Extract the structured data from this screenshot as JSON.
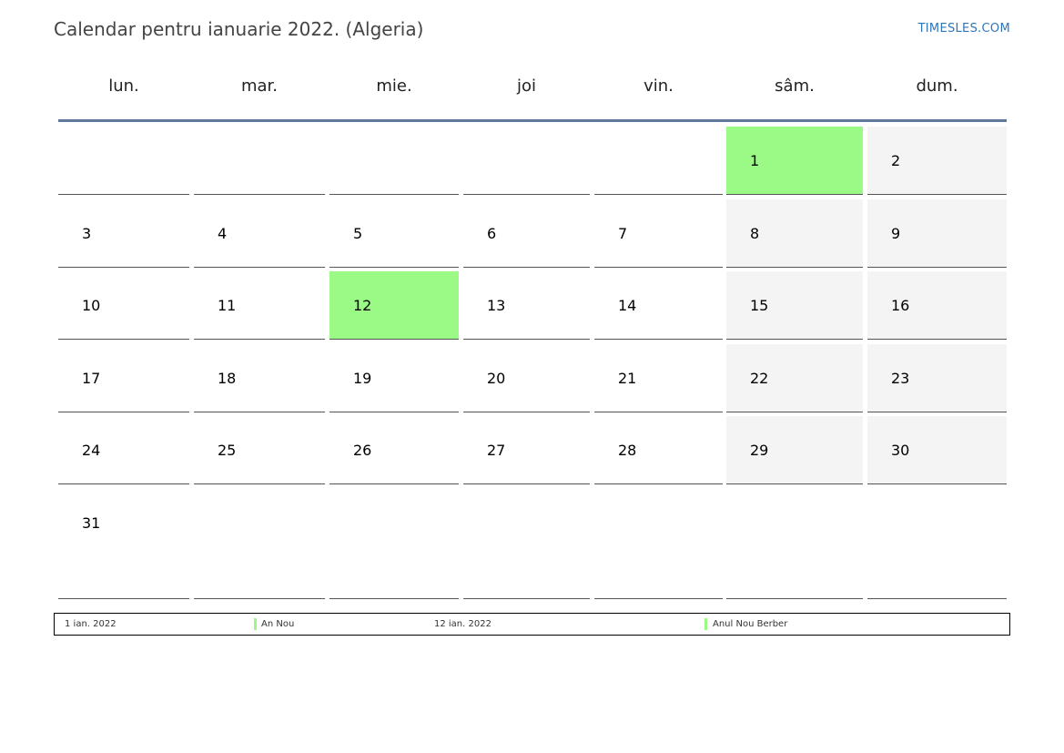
{
  "header": {
    "title": "Calendar pentru ianuarie 2022. (Algeria)",
    "site": "TIMESLES.COM"
  },
  "colors": {
    "holiday": "#9afa85",
    "weekend": "#f4f4f4",
    "header_rule": "#5d7a9a",
    "link": "#2e75b6"
  },
  "weekdays": [
    "lun.",
    "mar.",
    "mie.",
    "joi",
    "vin.",
    "sâm.",
    "dum."
  ],
  "weeks": [
    [
      "",
      "",
      "",
      "",
      "",
      "1",
      "2"
    ],
    [
      "3",
      "4",
      "5",
      "6",
      "7",
      "8",
      "9"
    ],
    [
      "10",
      "11",
      "12",
      "13",
      "14",
      "15",
      "16"
    ],
    [
      "17",
      "18",
      "19",
      "20",
      "21",
      "22",
      "23"
    ],
    [
      "24",
      "25",
      "26",
      "27",
      "28",
      "29",
      "30"
    ],
    [
      "31",
      "",
      "",
      "",
      "",
      "",
      ""
    ]
  ],
  "holidays": [
    "1",
    "12"
  ],
  "legend": [
    {
      "date": "1 ian. 2022",
      "name": "An Nou"
    },
    {
      "date": "12 ian. 2022",
      "name": "Anul Nou Berber"
    }
  ]
}
